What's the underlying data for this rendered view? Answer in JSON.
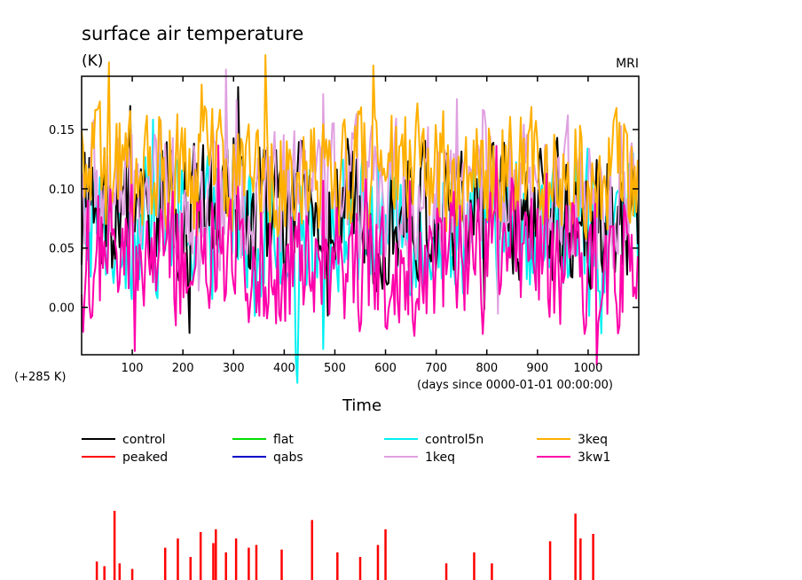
{
  "chart_data": {
    "type": "line",
    "title": "surface air temperature",
    "ylabel": "(K)",
    "source_label": "MRI",
    "y_offset_label": "(+285 K)",
    "xlabel": "Time",
    "x_units_label": "(days since 0000-01-01 00:00:00)",
    "xlim": [
      0,
      1100
    ],
    "ylim": [
      -0.04,
      0.195
    ],
    "x_ticks": [
      100,
      200,
      300,
      400,
      500,
      600,
      700,
      800,
      900,
      1000
    ],
    "y_ticks": [
      0.0,
      0.05,
      0.1,
      0.15
    ],
    "y_tick_labels": [
      "0.00",
      "0.05",
      "0.10",
      "0.15"
    ],
    "grid": false,
    "legend_position": "bottom",
    "series": [
      {
        "name": "control",
        "color": "#000000",
        "mean": 0.08,
        "amp": 0.045,
        "lo": -0.04,
        "hi": 0.195
      },
      {
        "name": "flat",
        "color": "#00e000",
        "mean": null
      },
      {
        "name": "control5n",
        "color": "#00f0f0",
        "mean": 0.07,
        "amp": 0.045,
        "lo": -0.085,
        "hi": 0.195
      },
      {
        "name": "3keq",
        "color": "#ffb000",
        "mean": 0.115,
        "amp": 0.04,
        "lo": 0.0,
        "hi": 0.225
      },
      {
        "name": "peaked",
        "color": "#ff0000",
        "mean": null
      },
      {
        "name": "qabs",
        "color": "#0000c8",
        "mean": null
      },
      {
        "name": "1keq",
        "color": "#e0a0e0",
        "mean": 0.095,
        "amp": 0.045,
        "lo": -0.04,
        "hi": 0.205
      },
      {
        "name": "3kw1",
        "color": "#ff00aa",
        "mean": 0.04,
        "amp": 0.045,
        "lo": -0.08,
        "hi": 0.15
      }
    ],
    "peaked_spike_days": [
      30,
      45,
      65,
      75,
      100,
      165,
      190,
      215,
      235,
      260,
      265,
      285,
      305,
      330,
      345,
      395,
      455,
      505,
      550,
      585,
      600,
      720,
      775,
      810,
      925,
      975,
      985,
      1010
    ],
    "peaked_spike_heights": [
      0.02,
      0.015,
      0.075,
      0.018,
      0.012,
      0.035,
      0.045,
      0.025,
      0.052,
      0.04,
      0.055,
      0.03,
      0.045,
      0.035,
      0.038,
      0.033,
      0.065,
      0.03,
      0.025,
      0.038,
      0.055,
      0.018,
      0.03,
      0.018,
      0.042,
      0.072,
      0.045,
      0.05
    ]
  }
}
